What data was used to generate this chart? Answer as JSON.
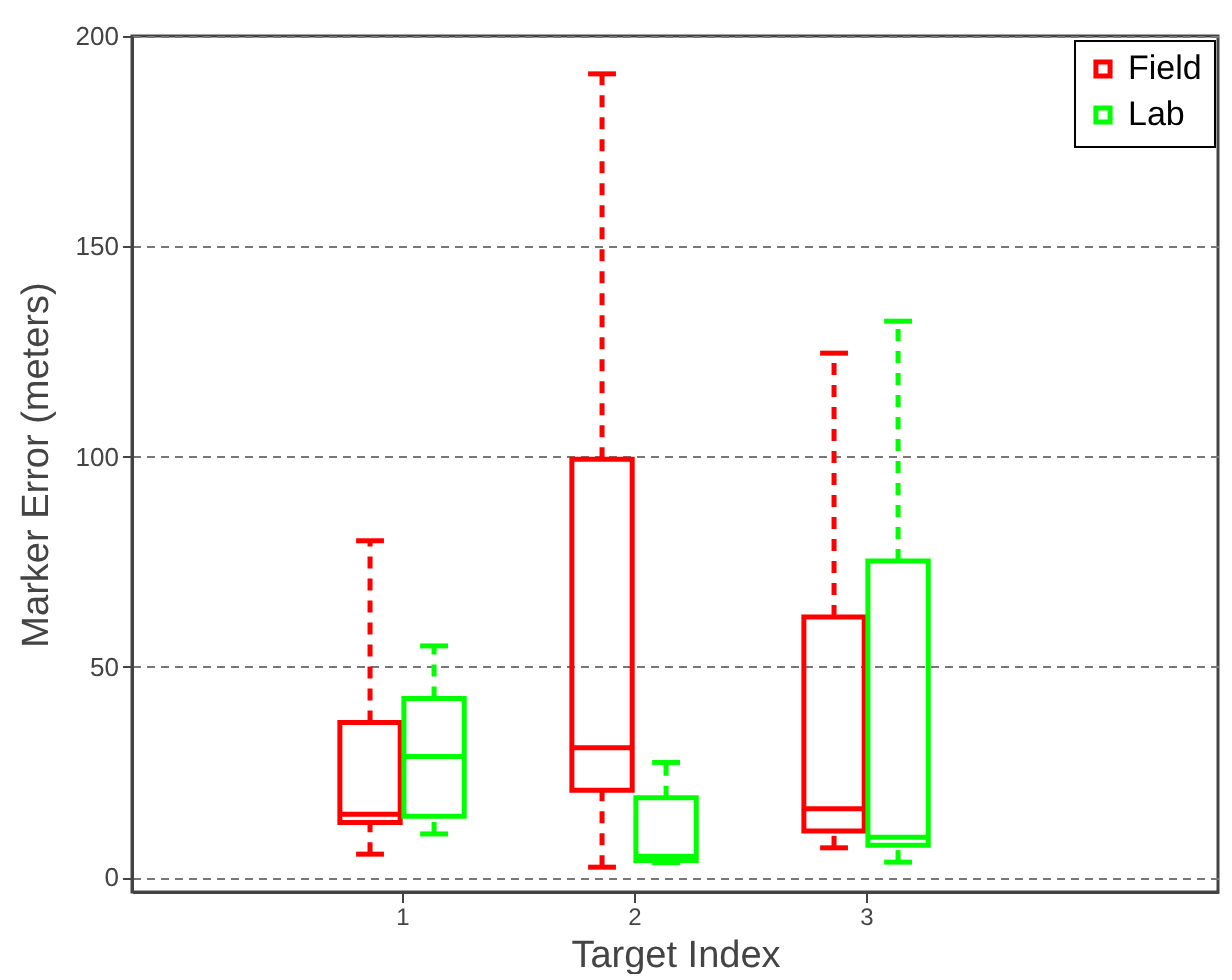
{
  "chart_data": {
    "type": "box",
    "xlabel": "Target Index",
    "ylabel": "Marker Error (meters)",
    "categories": [
      "1",
      "2",
      "3"
    ],
    "series": [
      {
        "name": "Field",
        "color": "#ff0000",
        "boxes": [
          {
            "low": 5.5,
            "q1": 13,
            "median": 15,
            "q3": 36.8,
            "high": 80
          },
          {
            "low": 2.4,
            "q1": 20.7,
            "median": 30.8,
            "q3": 99.4,
            "high": 191
          },
          {
            "low": 7,
            "q1": 11,
            "median": 16.3,
            "q3": 61.9,
            "high": 124.6
          }
        ]
      },
      {
        "name": "Lab",
        "color": "#00ff00",
        "boxes": [
          {
            "low": 10.3,
            "q1": 14.5,
            "median": 28.7,
            "q3": 42.5,
            "high": 55
          },
          {
            "low": 3.5,
            "q1": 4,
            "median": 5,
            "q3": 18.9,
            "high": 27.3
          },
          {
            "low": 3.6,
            "q1": 7.6,
            "median": 9.5,
            "q3": 75.2,
            "high": 132.2
          }
        ]
      }
    ],
    "ylim": [
      -3.5,
      200
    ],
    "yticks": [
      0,
      50,
      100,
      150,
      200
    ],
    "grid": "y",
    "legend": "top right",
    "line_style": "dashed"
  }
}
